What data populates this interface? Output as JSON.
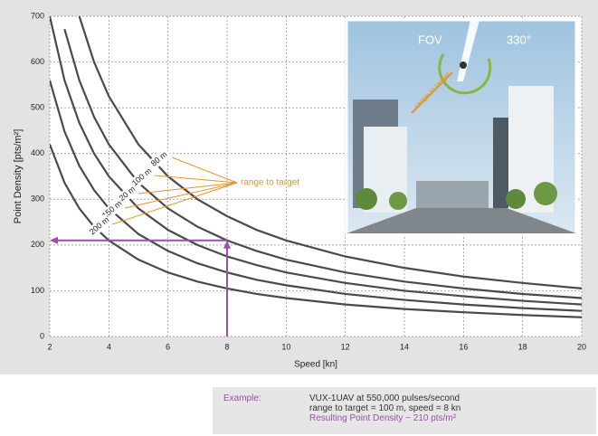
{
  "chart_data": {
    "type": "line",
    "xlabel": "Speed [kn]",
    "ylabel": "Point Density [pts/m²]",
    "x": [
      2,
      2.5,
      3,
      3.5,
      4,
      5,
      6,
      7,
      8,
      9,
      10,
      12,
      14,
      16,
      18,
      20
    ],
    "series": [
      {
        "name": "80 m",
        "color": "#4a4a4a",
        "values": [
          null,
          null,
          700,
          600,
          525,
          420,
          350,
          300,
          263,
          233,
          210,
          175,
          150,
          131,
          117,
          105
        ]
      },
      {
        "name": "100 m",
        "color": "#4a4a4a",
        "values": [
          null,
          672,
          560,
          480,
          420,
          336,
          280,
          240,
          210,
          187,
          168,
          140,
          120,
          105,
          93,
          84
        ]
      },
      {
        "name": "120 m",
        "color": "#4a4a4a",
        "values": [
          700,
          560,
          467,
          400,
          350,
          280,
          233,
          200,
          175,
          156,
          140,
          117,
          100,
          88,
          78,
          70
        ]
      },
      {
        "name": "150 m",
        "color": "#4a4a4a",
        "values": [
          560,
          448,
          373,
          320,
          280,
          224,
          187,
          160,
          140,
          124,
          112,
          93,
          80,
          70,
          62,
          56
        ]
      },
      {
        "name": "200 m",
        "color": "#4a4a4a",
        "values": [
          420,
          336,
          280,
          240,
          210,
          168,
          140,
          120,
          105,
          93,
          84,
          70,
          60,
          53,
          47,
          42
        ]
      }
    ],
    "xlim": [
      2,
      20
    ],
    "xticks": [
      2,
      4,
      6,
      8,
      10,
      12,
      14,
      16,
      18,
      20
    ],
    "ylim": [
      0,
      700
    ],
    "yticks": [
      0,
      100,
      200,
      300,
      400,
      500,
      600,
      700
    ],
    "grid": true,
    "annotation": "range to target",
    "highlight": {
      "x": 8,
      "y": 210,
      "color": "#9b4fa8"
    },
    "inset": {
      "fov": "FOV",
      "angle": "330°",
      "range": "range to target"
    }
  },
  "example": {
    "label": "Example:",
    "lines": [
      "VUX-1UAV at 550,000 pulses/second",
      "range to target = 100 m, speed = 8 kn",
      "Resulting Point Density ~ 210 pts/m²"
    ]
  }
}
